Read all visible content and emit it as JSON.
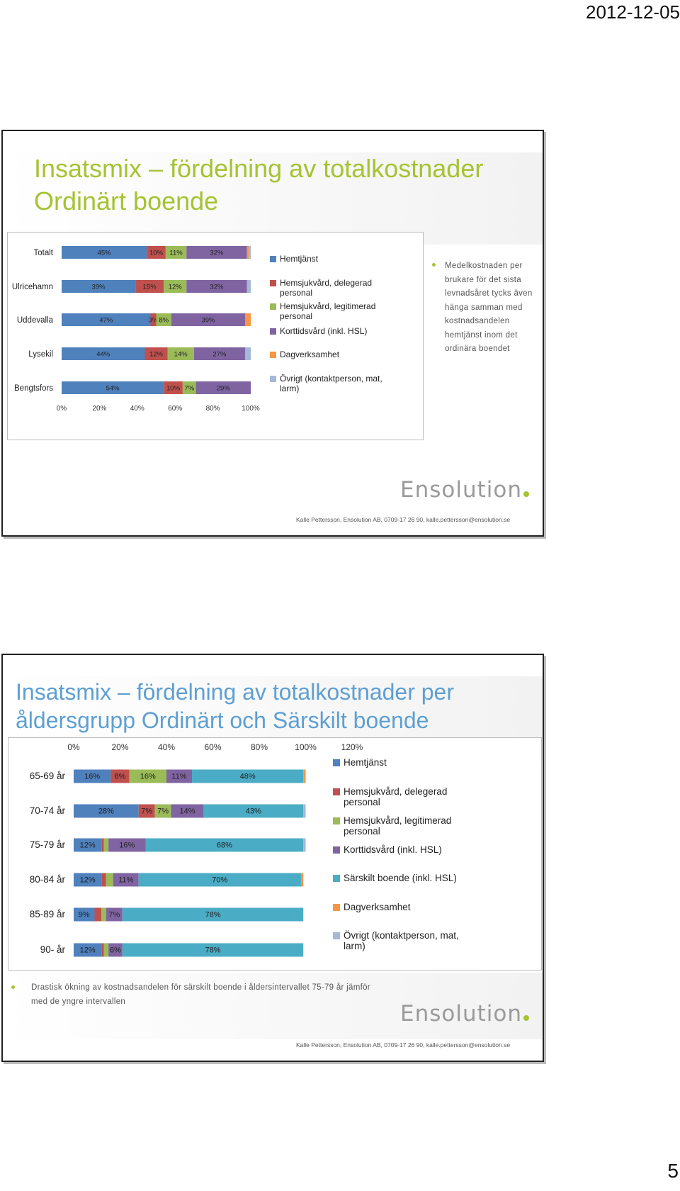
{
  "page": {
    "date": "2012-12-05",
    "number": "5"
  },
  "colors": {
    "hemtjanst": "#4f81bd",
    "delegerad": "#c0504d",
    "legitimerad": "#9bbb59",
    "korttidsvard": "#8064a2",
    "sarskilt": "#4bacc6",
    "dagverksamhet": "#f79646",
    "ovrigt": "#a5b8d7",
    "title_green": "#a5c332",
    "title_blue": "#5e9fd3"
  },
  "slide1": {
    "title_line1": "Insatsmix – fördelning av totalkostnader",
    "title_line2": "Ordinärt boende",
    "note": [
      "Medelkostnaden per",
      "brukare för det sista",
      "levnadsåret tycks även",
      "hänga samman med",
      "kostnadsandelen",
      "hemtjänst inom det",
      "ordinära boendet"
    ],
    "logo": "Ensolution",
    "footer": "Kalle Pettersson, Ensolution AB, 0709-17 26 90, kalle.pettersson@ensolution.se"
  },
  "slide2": {
    "title_line1": "Insatsmix – fördelning av totalkostnader per",
    "title_line2": "åldersgrupp Ordinärt och Särskilt boende",
    "note_line1": "Drastisk ökning av kostnadsandelen för särskilt boende i åldersintervallet 75-79 år jämför",
    "note_line2": "med de yngre intervallen",
    "logo": "Ensolution",
    "footer": "Kalle Pettersson, Ensolution AB, 0709-17 26 90, kalle.pettersson@ensolution.se"
  },
  "chart_data": [
    {
      "type": "bar",
      "orientation": "horizontal",
      "stacked": true,
      "categories": [
        "Totalt",
        "Ulricehamn",
        "Uddevalla",
        "Lysekil",
        "Bengtsfors"
      ],
      "xlim": [
        0,
        100
      ],
      "xticks": [
        "0%",
        "20%",
        "40%",
        "60%",
        "80%",
        "100%"
      ],
      "legend_position": "right",
      "grid": false,
      "series": [
        {
          "name": "Hemtjänst",
          "color": "#4f81bd",
          "values": [
            45,
            39,
            47,
            44,
            54
          ],
          "labels": [
            "45%",
            "39%",
            "47%",
            "44%",
            "54%"
          ]
        },
        {
          "name": "Hemsjukvård, delegerad personal",
          "color": "#c0504d",
          "values": [
            10,
            15,
            3,
            12,
            10
          ],
          "labels": [
            "10%",
            "15%",
            "3%",
            "12%",
            "10%"
          ]
        },
        {
          "name": "Hemsjukvård, legitimerad personal",
          "color": "#9bbb59",
          "values": [
            11,
            12,
            8,
            14,
            7
          ],
          "labels": [
            "11%",
            "12%",
            "8%",
            "14%",
            "7%"
          ]
        },
        {
          "name": "Korttidsvård (inkl. HSL)",
          "color": "#8064a2",
          "values": [
            32,
            32,
            39,
            27,
            29
          ],
          "labels": [
            "32%",
            "32%",
            "39%",
            "27%",
            "29%"
          ]
        },
        {
          "name": "Dagverksamhet",
          "color": "#f79646",
          "values": [
            1,
            0,
            3,
            0,
            0
          ],
          "labels": [
            "",
            "",
            "",
            "",
            ""
          ]
        },
        {
          "name": "Övrigt (kontaktperson, mat, larm)",
          "color": "#a5b8d7",
          "values": [
            1,
            2,
            0,
            3,
            0
          ],
          "labels": [
            "",
            "",
            "",
            "",
            ""
          ]
        }
      ]
    },
    {
      "type": "bar",
      "orientation": "horizontal",
      "stacked": true,
      "categories": [
        "65-69 år",
        "70-74 år",
        "75-79 år",
        "80-84 år",
        "85-89 år",
        "90- år"
      ],
      "xlim": [
        0,
        120
      ],
      "xticks": [
        "0%",
        "20%",
        "40%",
        "60%",
        "80%",
        "100%",
        "120%"
      ],
      "xaxis_position": "top",
      "legend_position": "right",
      "grid": false,
      "series": [
        {
          "name": "Hemtjänst",
          "color": "#4f81bd",
          "values": [
            16,
            28,
            12,
            12,
            9,
            12
          ],
          "labels": [
            "16%",
            "28%",
            "12%",
            "12%",
            "9%",
            "12%"
          ]
        },
        {
          "name": "Hemsjukvård, delegerad personal",
          "color": "#c0504d",
          "values": [
            8,
            7,
            1,
            2,
            3,
            1
          ],
          "labels": [
            "8%",
            "7%",
            "",
            "",
            "",
            ""
          ]
        },
        {
          "name": "Hemsjukvård, legitimerad personal",
          "color": "#9bbb59",
          "values": [
            16,
            7,
            2,
            3,
            2,
            2
          ],
          "labels": [
            "16%",
            "7%",
            "",
            "",
            "",
            ""
          ]
        },
        {
          "name": "Korttidsvård (inkl. HSL)",
          "color": "#8064a2",
          "values": [
            11,
            14,
            16,
            11,
            7,
            6
          ],
          "labels": [
            "11%",
            "14%",
            "16%",
            "11%",
            "7%",
            "6%"
          ]
        },
        {
          "name": "Särskilt boende (inkl. HSL)",
          "color": "#4bacc6",
          "values": [
            48,
            43,
            68,
            70,
            78,
            78
          ],
          "labels": [
            "48%",
            "43%",
            "68%",
            "70%",
            "78%",
            "78%"
          ]
        },
        {
          "name": "Dagverksamhet",
          "color": "#f79646",
          "values": [
            1,
            0,
            0,
            1,
            0,
            0
          ],
          "labels": [
            "",
            "",
            "",
            "",
            "",
            ""
          ]
        },
        {
          "name": "Övrigt (kontaktperson, mat, larm)",
          "color": "#a5b8d7",
          "values": [
            0,
            1,
            1,
            0,
            0,
            0
          ],
          "labels": [
            "",
            "",
            "",
            "",
            "",
            ""
          ]
        }
      ]
    }
  ]
}
